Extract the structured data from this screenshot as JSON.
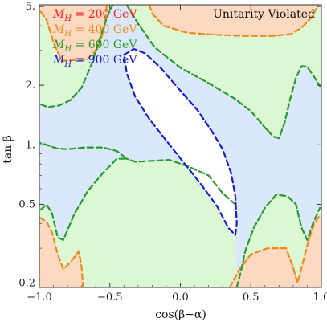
{
  "chart_data": {
    "type": "contour",
    "xlabel": "cos(β−α)",
    "ylabel": "tan β",
    "xlim": [
      -1.0,
      1.0
    ],
    "ylim": [
      0.19,
      5.1
    ],
    "yscale": "log",
    "x_ticks": [
      {
        "value": -1.0,
        "label": "−1.0"
      },
      {
        "value": -0.5,
        "label": "−0.5"
      },
      {
        "value": 0.0,
        "label": "0.0"
      },
      {
        "value": 0.5,
        "label": "0.5"
      },
      {
        "value": 1.0,
        "label": "1.0"
      }
    ],
    "y_ticks": [
      {
        "value": 0.2,
        "label": "0.2"
      },
      {
        "value": 0.5,
        "label": "0.5"
      },
      {
        "value": 1.0,
        "label": "1."
      },
      {
        "value": 2.0,
        "label": "2."
      },
      {
        "value": 5.0,
        "label": "5."
      }
    ],
    "annotation": "Unitarity Violated",
    "background_color": "#d9e9fb",
    "legend_position": "top-left",
    "series": [
      {
        "name": "M_H = 200 GeV",
        "mass": "200",
        "color": "#ff1f1f",
        "fill": "",
        "contours": []
      },
      {
        "name": "M_H = 400 GeV",
        "mass": "400",
        "color": "#f08a1d",
        "fill": "#fcd9c0",
        "contours": [
          [
            [
              -0.99,
              4.7
            ],
            [
              -0.95,
              4.3
            ],
            [
              -0.9,
              3.3
            ],
            [
              -0.84,
              2.65
            ],
            [
              -0.75,
              2.68
            ],
            [
              -0.66,
              2.7
            ],
            [
              -0.58,
              3.1
            ],
            [
              -0.54,
              3.9
            ],
            [
              -0.52,
              5.1
            ]
          ],
          [
            [
              -0.22,
              5.1
            ],
            [
              -0.2,
              4.6
            ],
            [
              -0.12,
              4.0
            ],
            [
              0.05,
              3.68
            ],
            [
              0.25,
              3.6
            ],
            [
              0.45,
              3.55
            ],
            [
              0.65,
              3.55
            ],
            [
              0.78,
              3.62
            ],
            [
              0.86,
              3.9
            ],
            [
              0.93,
              4.4
            ],
            [
              0.98,
              5.1
            ]
          ],
          [
            [
              -1.0,
              0.43
            ],
            [
              -0.95,
              0.41
            ],
            [
              -0.91,
              0.36
            ],
            [
              -0.87,
              0.28
            ],
            [
              -0.83,
              0.235
            ],
            [
              -0.77,
              0.26
            ],
            [
              -0.72,
              0.29
            ],
            [
              -0.7,
              0.24
            ],
            [
              -0.69,
              0.19
            ]
          ],
          [
            [
              0.35,
              0.19
            ],
            [
              0.42,
              0.235
            ],
            [
              0.5,
              0.28
            ],
            [
              0.62,
              0.3
            ],
            [
              0.75,
              0.3
            ],
            [
              0.8,
              0.24
            ],
            [
              0.83,
              0.2
            ],
            [
              0.86,
              0.24
            ],
            [
              0.91,
              0.33
            ],
            [
              0.95,
              0.4
            ],
            [
              0.99,
              0.44
            ]
          ]
        ]
      },
      {
        "name": "M_H = 600 GeV",
        "mass": "600",
        "color": "#2a9a2a",
        "fill": "#dbf7d4",
        "contours": [
          [
            [
              -0.99,
              1.6
            ],
            [
              -0.94,
              1.55
            ],
            [
              -0.86,
              1.58
            ],
            [
              -0.78,
              1.68
            ],
            [
              -0.7,
              1.95
            ],
            [
              -0.63,
              2.55
            ],
            [
              -0.58,
              3.3
            ],
            [
              -0.54,
              4.0
            ],
            [
              -0.51,
              4.6
            ],
            [
              -0.48,
              5.1
            ]
          ],
          [
            [
              -0.38,
              5.1
            ],
            [
              -0.3,
              4.1
            ],
            [
              -0.18,
              3.1
            ],
            [
              0.0,
              2.45
            ],
            [
              0.2,
              2.05
            ],
            [
              0.38,
              1.72
            ],
            [
              0.5,
              1.48
            ],
            [
              0.56,
              1.32
            ],
            [
              0.6,
              1.22
            ],
            [
              0.62,
              1.18
            ]
          ],
          [
            [
              -0.99,
              0.47
            ],
            [
              -0.95,
              0.5
            ],
            [
              -0.91,
              0.45
            ],
            [
              -0.87,
              0.34
            ],
            [
              -0.83,
              0.33
            ],
            [
              -0.75,
              0.45
            ],
            [
              -0.66,
              0.58
            ],
            [
              -0.55,
              0.72
            ],
            [
              -0.45,
              0.85
            ],
            [
              -0.38,
              0.85
            ],
            [
              -0.45,
              0.93
            ],
            [
              -0.55,
              0.97
            ],
            [
              -0.68,
              0.97
            ],
            [
              -0.8,
              0.95
            ],
            [
              -0.88,
              0.96
            ],
            [
              -0.95,
              1.0
            ],
            [
              -0.99,
              1.02
            ]
          ],
          [
            [
              0.62,
              1.18
            ],
            [
              0.66,
              1.1
            ],
            [
              0.7,
              1.08
            ],
            [
              0.74,
              1.3
            ],
            [
              0.78,
              1.72
            ],
            [
              0.82,
              2.18
            ],
            [
              0.86,
              2.5
            ],
            [
              0.9,
              2.48
            ],
            [
              0.95,
              2.2
            ],
            [
              0.99,
              1.98
            ]
          ],
          [
            [
              0.4,
              0.19
            ],
            [
              0.43,
              0.23
            ],
            [
              0.46,
              0.29
            ],
            [
              0.52,
              0.38
            ],
            [
              0.6,
              0.48
            ],
            [
              0.68,
              0.56
            ],
            [
              0.76,
              0.55
            ],
            [
              0.82,
              0.5
            ],
            [
              0.86,
              0.38
            ],
            [
              0.9,
              0.33
            ],
            [
              0.94,
              0.4
            ],
            [
              0.99,
              0.48
            ]
          ],
          [
            [
              0.39,
              0.5
            ],
            [
              0.3,
              0.57
            ],
            [
              0.2,
              0.7
            ],
            [
              0.05,
              0.78
            ],
            [
              -0.08,
              0.84
            ],
            [
              -0.2,
              0.83
            ],
            [
              -0.32,
              0.82
            ],
            [
              -0.38,
              0.85
            ]
          ]
        ]
      },
      {
        "name": "M_H = 900 GeV",
        "mass": "900",
        "color": "#1a1ad8",
        "fill": "#ffffff",
        "contours": [
          [
            [
              -0.4,
              2.85
            ],
            [
              -0.33,
              3.05
            ],
            [
              -0.25,
              2.9
            ],
            [
              -0.14,
              2.45
            ],
            [
              -0.02,
              1.95
            ],
            [
              0.12,
              1.5
            ],
            [
              0.22,
              1.18
            ],
            [
              0.3,
              0.95
            ],
            [
              0.36,
              0.72
            ],
            [
              0.39,
              0.55
            ],
            [
              0.4,
              0.4
            ],
            [
              0.39,
              0.35
            ],
            [
              0.34,
              0.38
            ],
            [
              0.26,
              0.49
            ],
            [
              0.14,
              0.64
            ],
            [
              0.02,
              0.82
            ],
            [
              -0.1,
              1.05
            ],
            [
              -0.22,
              1.35
            ],
            [
              -0.32,
              1.75
            ],
            [
              -0.38,
              2.3
            ],
            [
              -0.4,
              2.85
            ]
          ]
        ]
      }
    ]
  }
}
